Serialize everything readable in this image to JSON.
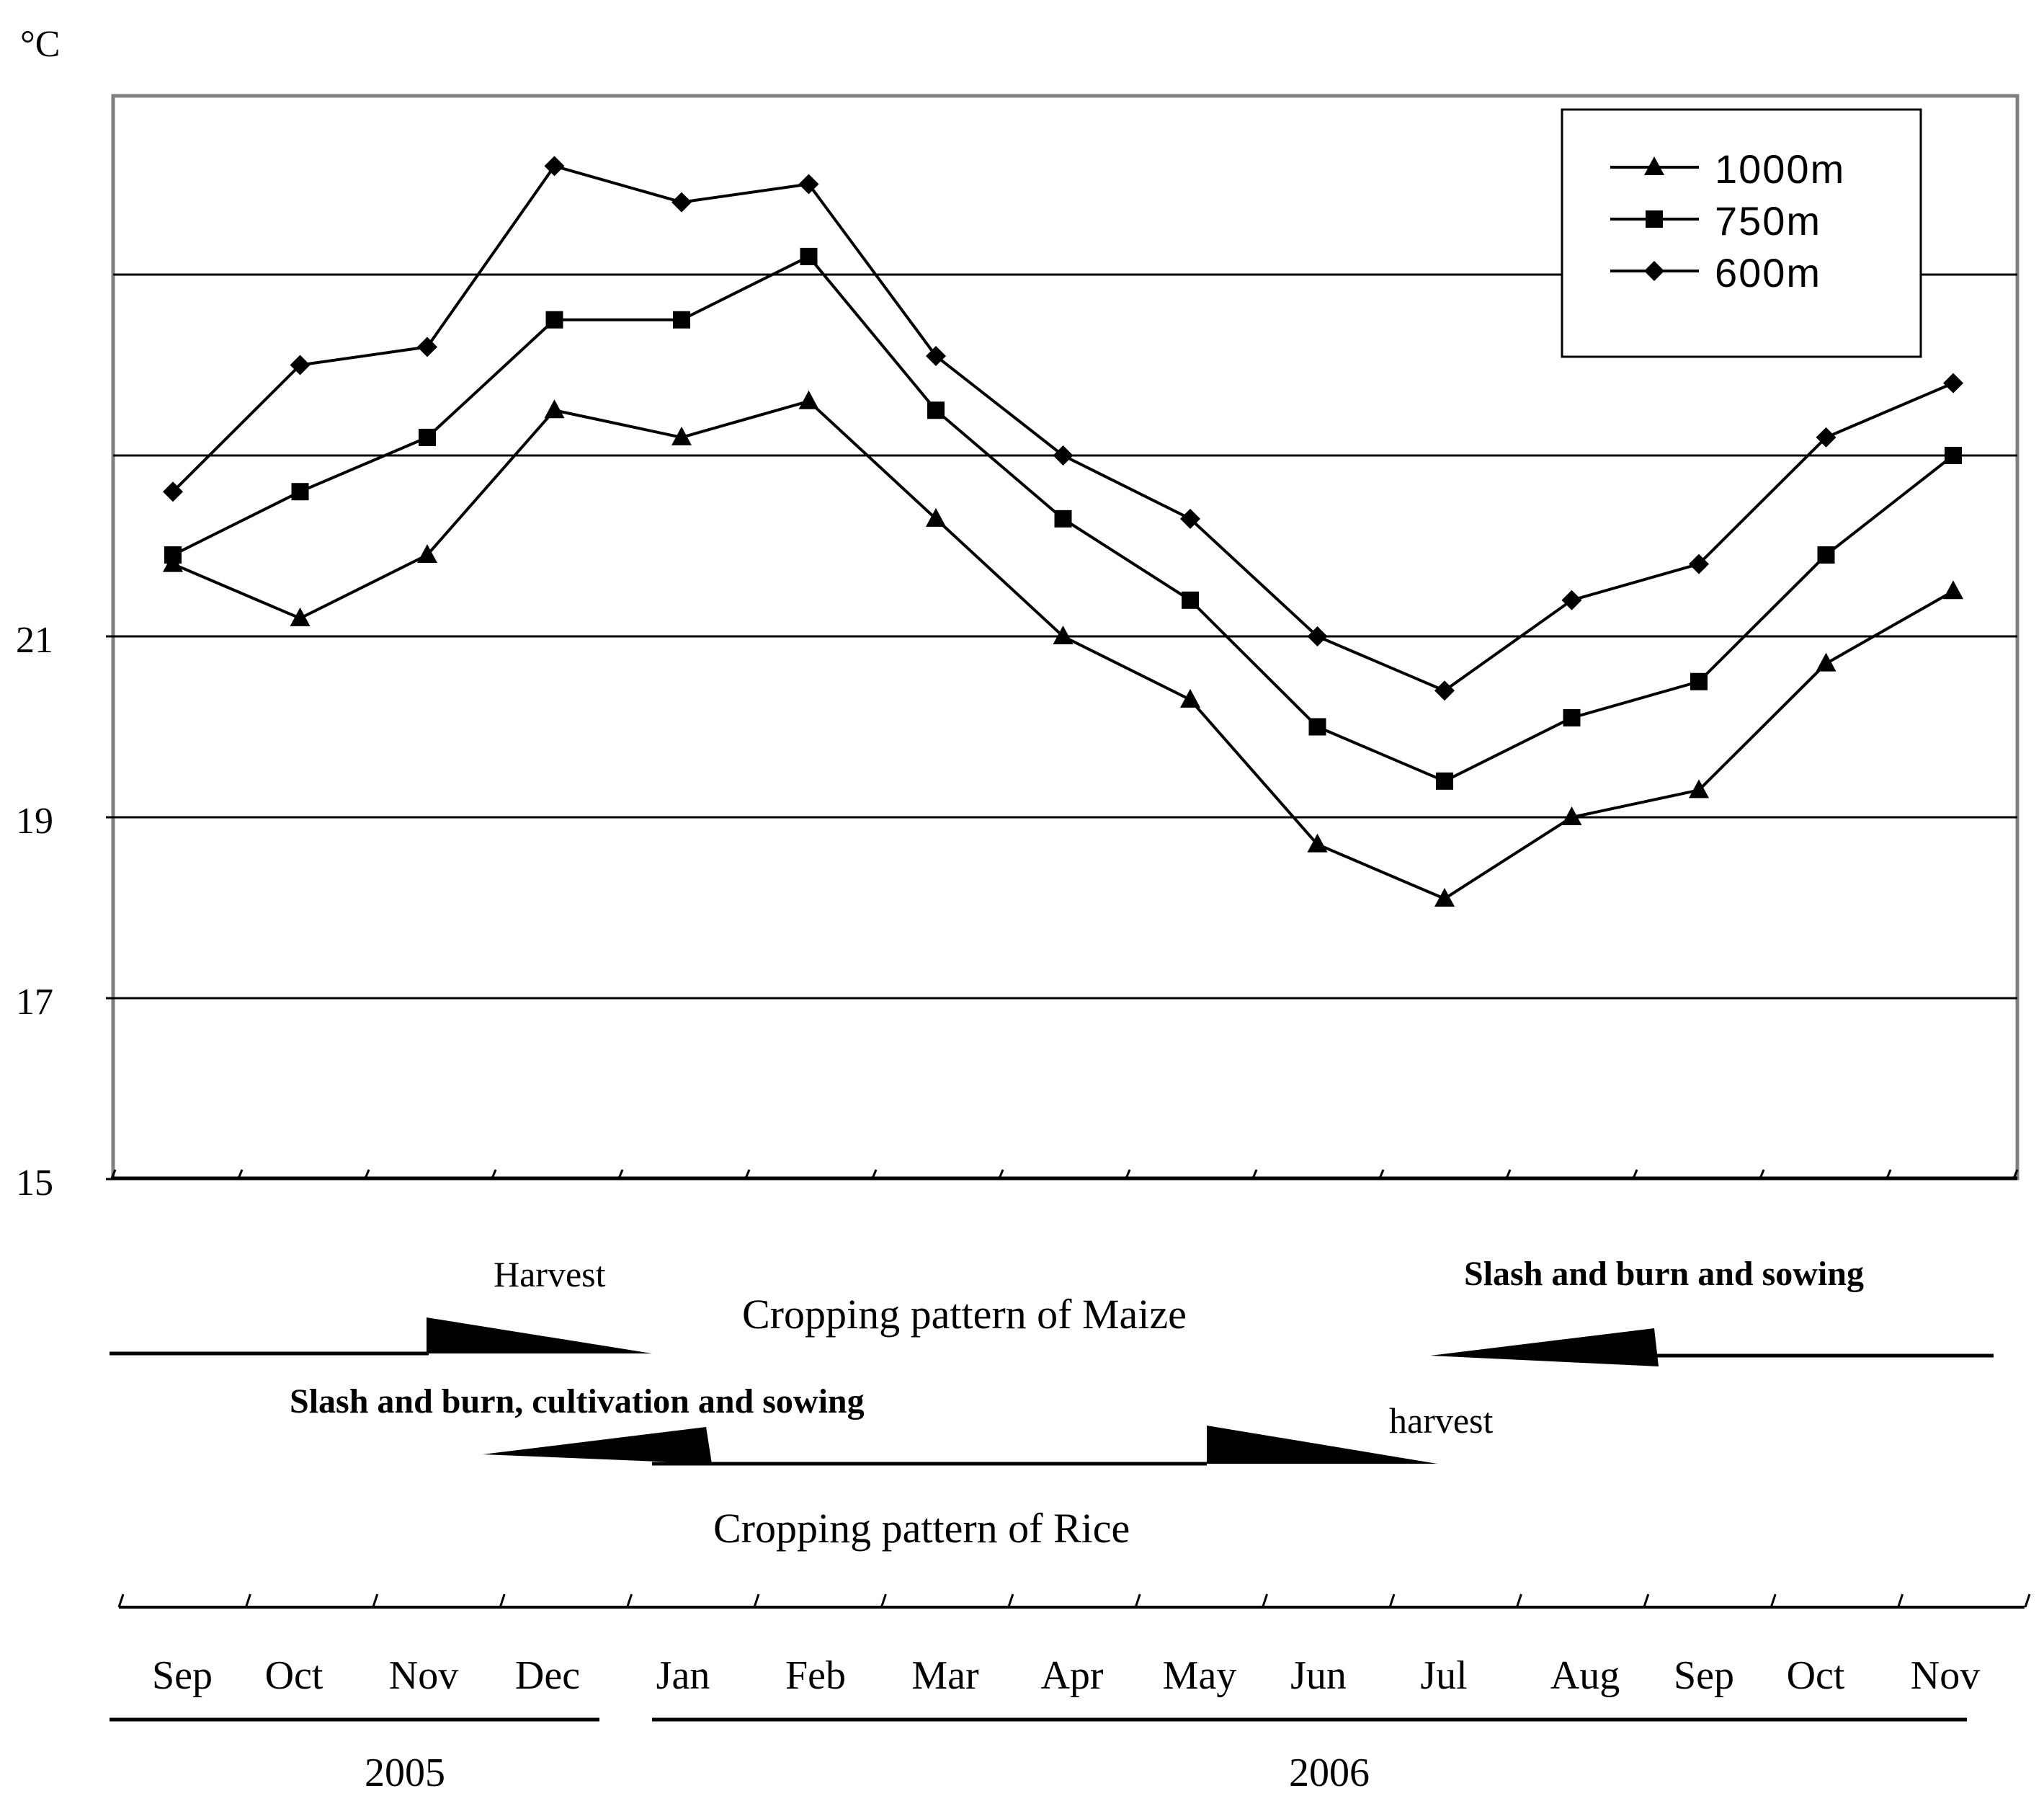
{
  "chart_data": {
    "type": "line",
    "unit_label": "°C",
    "ylim": [
      15,
      27
    ],
    "y_ticks": [
      15,
      17,
      19,
      21
    ],
    "gridlines": [
      17,
      19,
      21,
      23,
      25
    ],
    "grid": true,
    "legend_position": "top-right",
    "categories": [
      "Sep",
      "Oct",
      "Nov",
      "Dec",
      "Jan",
      "Feb",
      "Mar",
      "Apr",
      "May",
      "Jun",
      "Jul",
      "Aug",
      "Sep",
      "Oct",
      "Nov"
    ],
    "series": [
      {
        "name": "1000m",
        "marker": "triangle",
        "values": [
          21.8,
          21.2,
          21.9,
          23.5,
          23.2,
          23.6,
          22.3,
          21.0,
          20.3,
          18.7,
          18.1,
          19.0,
          19.3,
          20.7,
          21.5
        ]
      },
      {
        "name": "750m",
        "marker": "square",
        "values": [
          21.9,
          22.6,
          23.2,
          24.5,
          24.5,
          25.2,
          23.5,
          22.3,
          21.4,
          20.0,
          19.4,
          20.1,
          20.5,
          21.9,
          23.0
        ]
      },
      {
        "name": "600m",
        "marker": "diamond",
        "values": [
          22.6,
          24.0,
          24.2,
          26.2,
          25.8,
          26.0,
          24.1,
          23.0,
          22.3,
          21.0,
          20.4,
          21.4,
          21.8,
          23.2,
          23.8
        ]
      }
    ],
    "years": [
      {
        "label": "2005",
        "from_month": 0,
        "to_month": 3
      },
      {
        "label": "2006",
        "from_month": 4,
        "to_month": 14
      }
    ],
    "annotations": {
      "maize_title": "Cropping pattern of Maize",
      "maize_harvest": "Harvest",
      "maize_sowing": "Slash and burn and sowing",
      "rice_title": "Cropping pattern of Rice",
      "rice_sowing": "Slash and burn, cultivation and sowing",
      "rice_harvest": "harvest"
    }
  }
}
